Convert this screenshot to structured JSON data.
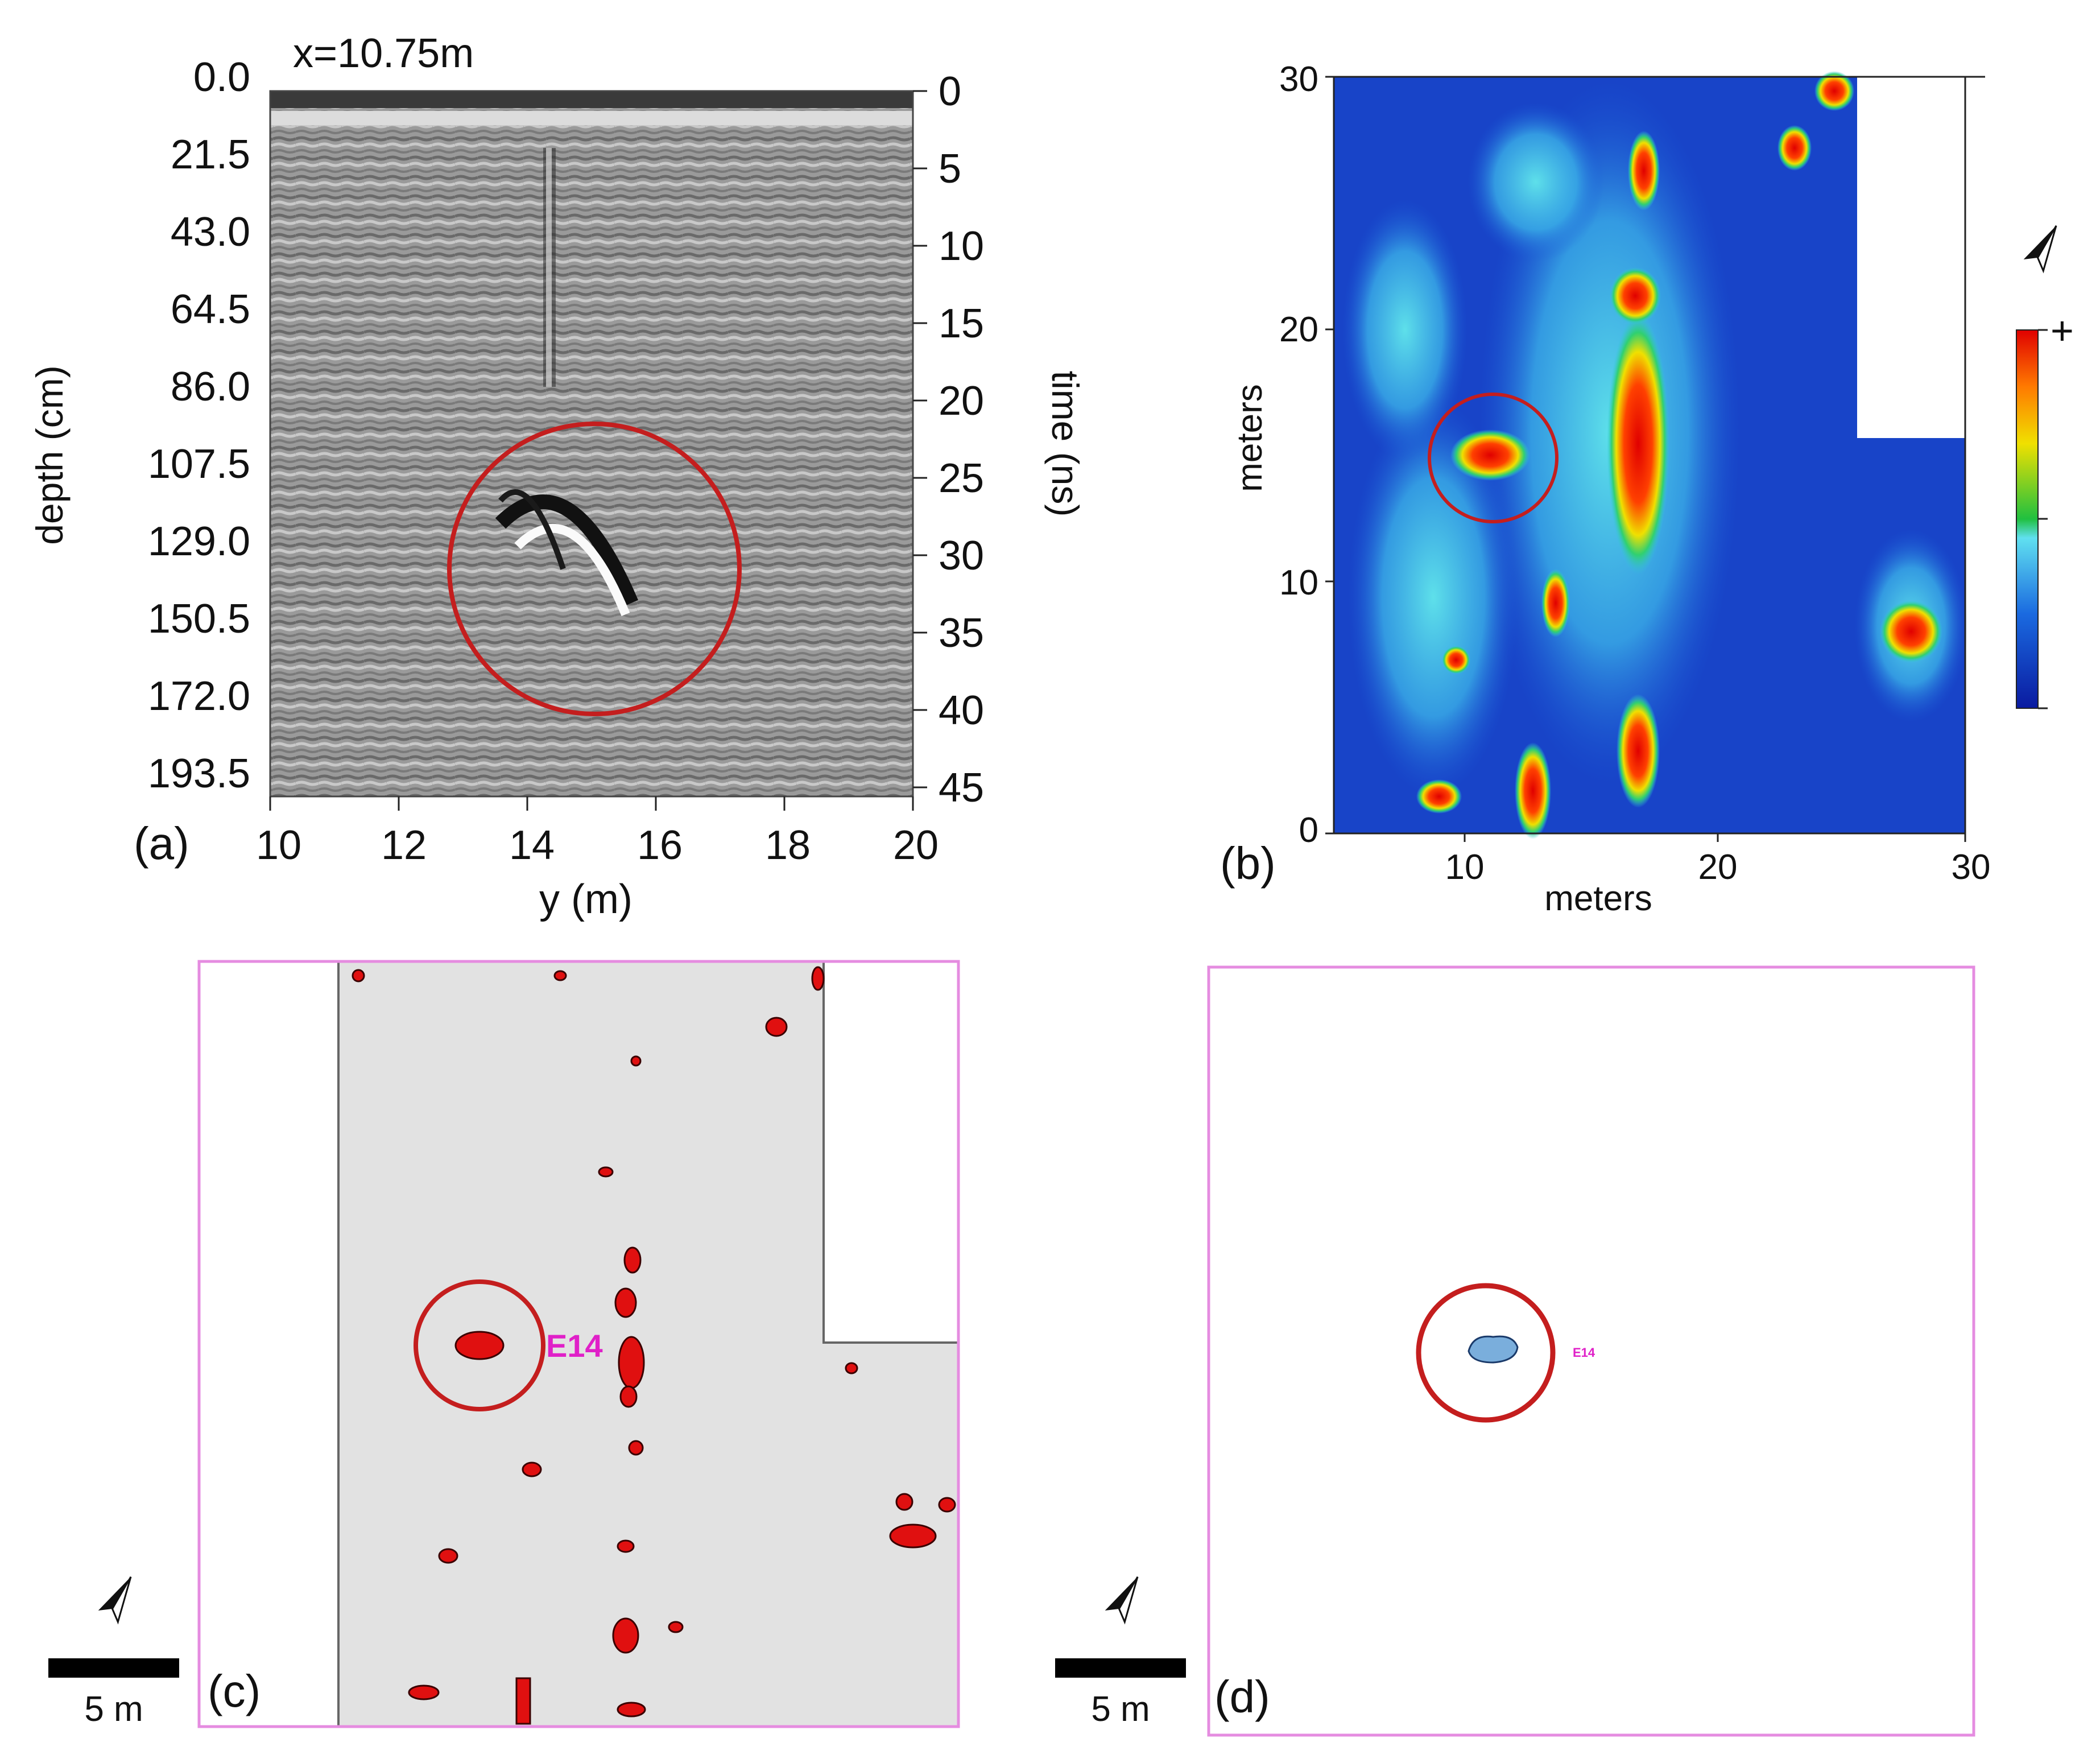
{
  "panel_a": {
    "letter": "(a)",
    "title": "x=10.75m",
    "depth_label": "depth (cm)",
    "time_label": "time (ns)",
    "x_label": "y (m)",
    "depth_ticks": [
      "0.0",
      "21.5",
      "43.0",
      "64.5",
      "86.0",
      "107.5",
      "129.0",
      "150.5",
      "172.0",
      "193.5"
    ],
    "time_ticks": [
      "0",
      "5",
      "10",
      "15",
      "20",
      "25",
      "30",
      "35",
      "40",
      "45"
    ],
    "x_ticks": [
      "10",
      "12",
      "14",
      "16",
      "18",
      "20"
    ]
  },
  "panel_b": {
    "letter": "(b)",
    "x_label": "meters",
    "y_label": "meters",
    "x_ticks": [
      "10",
      "20",
      "30"
    ],
    "y_ticks": [
      "0",
      "10",
      "20",
      "30"
    ],
    "colorbar_plus": "+"
  },
  "panel_c": {
    "letter": "(c)",
    "anomaly_label": "E14",
    "scale_label": "5 m"
  },
  "panel_d": {
    "letter": "(d)",
    "anomaly_label": "E14",
    "scale_label": "5 m"
  },
  "colors": {
    "highlight_circle": "#c41e1e",
    "survey_frame": "#e58ce0",
    "anomaly_label": "#e020c8",
    "anomaly_red": "#e01010",
    "anomaly_blue": "#7aaedc"
  }
}
